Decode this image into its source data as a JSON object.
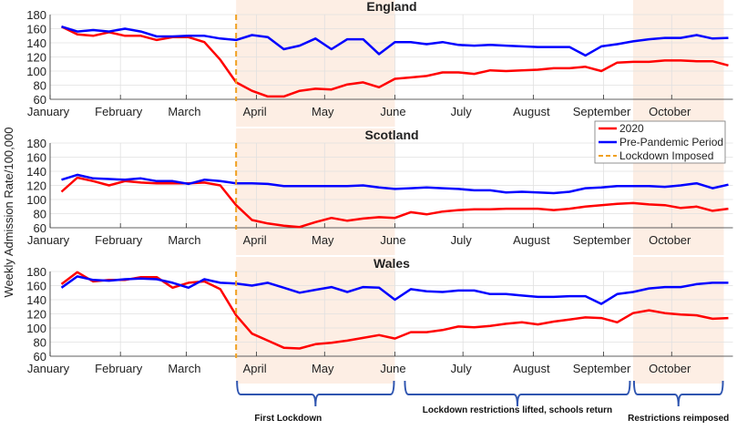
{
  "chart_data": [
    {
      "type": "line",
      "title": "England",
      "ylabel": "Weekly Admission Rate/100,000",
      "ylim": [
        60,
        180
      ],
      "yticks": [
        60,
        80,
        100,
        120,
        140,
        160,
        180
      ],
      "xtick_labels": [
        "January",
        "February",
        "March",
        "April",
        "May",
        "June",
        "July",
        "August",
        "September",
        "October"
      ],
      "grid": true,
      "series": [
        {
          "name": "2020",
          "color": "#ff0000",
          "values": [
            163,
            152,
            150,
            155,
            150,
            150,
            144,
            148,
            148,
            141,
            116,
            84,
            72,
            64,
            64,
            72,
            75,
            74,
            81,
            84,
            77,
            89,
            91,
            93,
            98,
            98,
            96,
            101,
            100,
            101,
            102,
            104,
            104,
            106,
            100,
            112,
            113,
            113,
            115,
            115,
            114,
            114,
            108
          ]
        },
        {
          "name": "Pre-Pandemic Period",
          "color": "#0000ff",
          "values": [
            163,
            156,
            158,
            156,
            160,
            156,
            149,
            149,
            150,
            150,
            146,
            144,
            151,
            148,
            131,
            136,
            146,
            131,
            145,
            145,
            124,
            141,
            141,
            138,
            141,
            137,
            136,
            137,
            136,
            135,
            134,
            134,
            134,
            122,
            135,
            138,
            142,
            145,
            147,
            147,
            151,
            146,
            147
          ]
        }
      ]
    },
    {
      "type": "line",
      "title": "Scotland",
      "ylim": [
        60,
        180
      ],
      "yticks": [
        60,
        80,
        100,
        120,
        140,
        160,
        180
      ],
      "xtick_labels": [
        "January",
        "February",
        "March",
        "April",
        "May",
        "June",
        "July",
        "August",
        "September",
        "October"
      ],
      "grid": true,
      "series": [
        {
          "name": "2020",
          "color": "#ff0000",
          "values": [
            111,
            131,
            126,
            120,
            126,
            124,
            123,
            123,
            123,
            124,
            120,
            92,
            71,
            66,
            63,
            61,
            68,
            74,
            70,
            73,
            75,
            74,
            82,
            79,
            83,
            85,
            86,
            86,
            87,
            87,
            87,
            85,
            87,
            90,
            92,
            94,
            95,
            93,
            92,
            88,
            90,
            84,
            87
          ]
        },
        {
          "name": "Pre-Pandemic Period",
          "color": "#0000ff",
          "values": [
            128,
            135,
            130,
            129,
            128,
            130,
            126,
            126,
            122,
            128,
            126,
            123,
            123,
            122,
            119,
            119,
            119,
            119,
            119,
            120,
            117,
            115,
            116,
            117,
            116,
            115,
            113,
            113,
            110,
            111,
            110,
            109,
            111,
            116,
            117,
            119,
            119,
            119,
            118,
            120,
            123,
            116,
            121
          ]
        }
      ]
    },
    {
      "type": "line",
      "title": "Wales",
      "ylim": [
        60,
        180
      ],
      "yticks": [
        60,
        80,
        100,
        120,
        140,
        160,
        180
      ],
      "xtick_labels": [
        "January",
        "February",
        "March",
        "April",
        "May",
        "June",
        "July",
        "August",
        "September",
        "October"
      ],
      "grid": true,
      "series": [
        {
          "name": "2020",
          "color": "#ff0000",
          "values": [
            162,
            179,
            166,
            168,
            168,
            172,
            172,
            157,
            164,
            166,
            155,
            118,
            92,
            82,
            72,
            71,
            77,
            79,
            82,
            86,
            90,
            85,
            94,
            94,
            97,
            102,
            101,
            103,
            106,
            108,
            105,
            109,
            112,
            115,
            114,
            108,
            121,
            125,
            121,
            119,
            118,
            113,
            114
          ]
        },
        {
          "name": "Pre-Pandemic Period",
          "color": "#0000ff",
          "values": [
            157,
            173,
            168,
            167,
            169,
            170,
            169,
            164,
            157,
            169,
            164,
            163,
            160,
            164,
            157,
            150,
            154,
            158,
            151,
            158,
            157,
            140,
            155,
            152,
            151,
            153,
            153,
            148,
            148,
            146,
            144,
            144,
            145,
            145,
            134,
            148,
            151,
            156,
            158,
            158,
            162,
            164,
            164
          ]
        }
      ]
    }
  ],
  "x_dates": {
    "first_week": "2020-01-06",
    "step_days": 7,
    "xlim": [
      "2020-01-01",
      "2020-10-28"
    ]
  },
  "lockdown": {
    "name": "Lockdown Imposed",
    "date": "2020-03-23",
    "color": "#f0a020"
  },
  "shaded_periods": [
    {
      "start": "2020-03-23",
      "end": "2020-06-01",
      "color": "#fdeee4"
    },
    {
      "start": "2020-09-14",
      "end": "2020-10-24",
      "color": "#fdeee4"
    }
  ],
  "legend": {
    "placement": "right",
    "entries": [
      "2020",
      "Pre-Pandemic Period",
      "Lockdown Imposed"
    ]
  },
  "annotations": [
    {
      "label": "First Lockdown",
      "start": "2020-03-23",
      "end": "2020-06-01"
    },
    {
      "label": "Lockdown restrictions lifted, schools return",
      "start": "2020-06-05",
      "end": "2020-09-13"
    },
    {
      "label": "Restrictions reimposed",
      "start": "2020-09-14",
      "end": "2020-10-24"
    }
  ],
  "colors": {
    "brace": "#2f55b0",
    "grid": "#e0e0e0",
    "axis": "#333333"
  }
}
